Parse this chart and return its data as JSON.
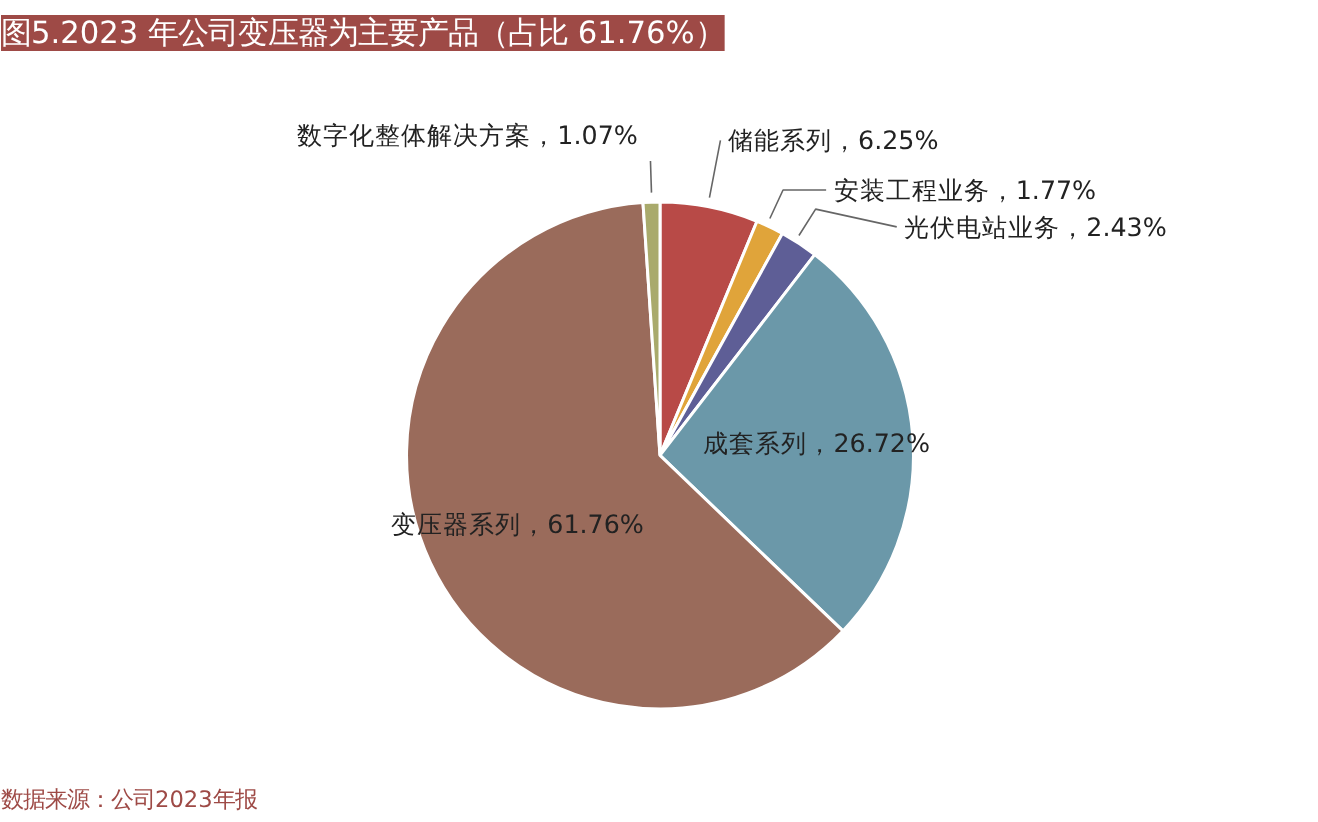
{
  "chart_data": {
    "type": "pie",
    "title": "图5.2023 年公司变压器为主要产品（占比 61.76%）",
    "categories": [
      "储能系列",
      "安装工程业务",
      "光伏电站业务",
      "成套系列",
      "变压器系列",
      "数字化整体解决方案"
    ],
    "value_labels": [
      "6.25%",
      "1.77%",
      "2.43%",
      "26.72%",
      "61.76%",
      "1.07%"
    ],
    "values": [
      6.25,
      1.77,
      2.43,
      26.72,
      61.76,
      1.07
    ],
    "colors": [
      "#b84a47",
      "#e0a43a",
      "#5e5e96",
      "#6b98a9",
      "#9a6b5b",
      "#a9aa6c"
    ],
    "annotations": [
      "数据来源：公司2023年报"
    ]
  }
}
